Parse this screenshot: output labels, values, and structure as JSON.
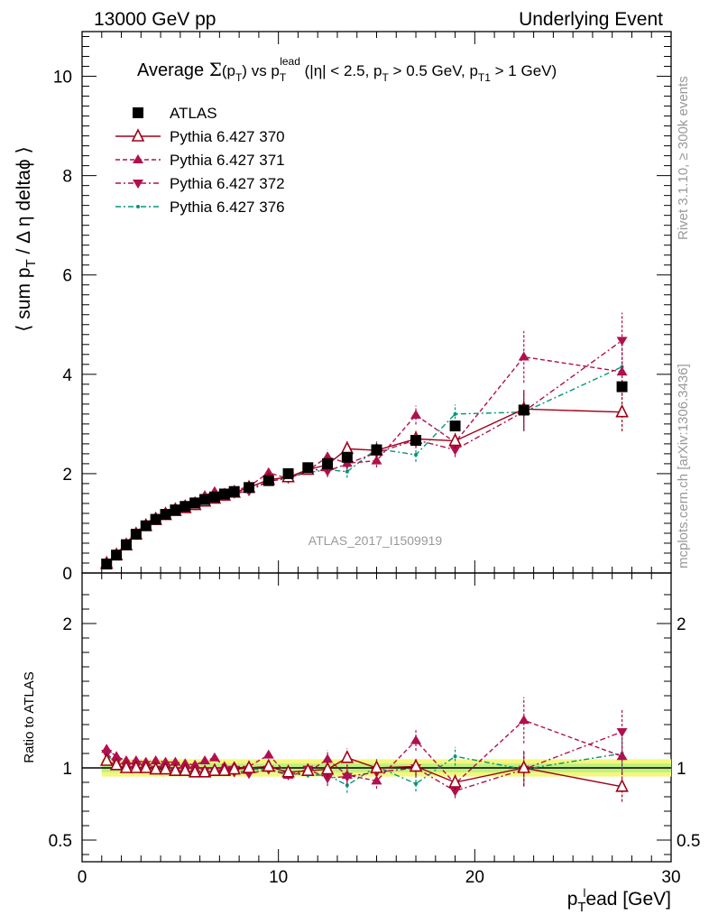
{
  "header": {
    "left": "13000 GeV pp",
    "right": "Underlying Event"
  },
  "side_labels": {
    "rivet": "Rivet 3.1.10, ≥ 300k events",
    "mcplots": "mcplots.cern.ch [arXiv:1306.3436]"
  },
  "analysis_label": "ATLAS_2017_I1509919",
  "chart_data": [
    {
      "type": "line",
      "title": "Average Σ(pT) vs pT lead (|η| < 2.5, pT > 0.5 GeV, pT1 > 1 GeV)",
      "xlabel": "pT lead [GeV]",
      "ylabel": "⟨ sum pT / Δη deltaϕ ⟩",
      "xlim": [
        0,
        30
      ],
      "ylim": [
        0,
        10.9
      ],
      "x_ticks": [
        0,
        10,
        20,
        30
      ],
      "y_ticks": [
        0,
        2,
        4,
        6,
        8,
        10
      ],
      "legend_position": "top-left",
      "series": [
        {
          "name": "ATLAS",
          "marker": "square",
          "color": "#000000",
          "x": [
            1.25,
            1.75,
            2.25,
            2.75,
            3.25,
            3.75,
            4.25,
            4.75,
            5.25,
            5.75,
            6.25,
            6.75,
            7.25,
            7.75,
            8.5,
            9.5,
            10.5,
            11.5,
            12.5,
            13.5,
            15.0,
            17.0,
            19.0,
            22.5,
            27.5
          ],
          "y": [
            0.18,
            0.36,
            0.57,
            0.78,
            0.95,
            1.08,
            1.18,
            1.27,
            1.34,
            1.41,
            1.48,
            1.53,
            1.59,
            1.64,
            1.72,
            1.86,
            2.0,
            2.12,
            2.2,
            2.33,
            2.48,
            2.67,
            2.96,
            3.28,
            3.75
          ]
        },
        {
          "name": "Pythia 6.427 370",
          "marker": "open-triangle-up",
          "line": "solid",
          "color": "#a00018",
          "x": [
            1.25,
            1.75,
            2.25,
            2.75,
            3.25,
            3.75,
            4.25,
            4.75,
            5.25,
            5.75,
            6.25,
            6.75,
            7.25,
            7.75,
            8.5,
            9.5,
            10.5,
            11.5,
            12.5,
            13.5,
            15.0,
            17.0,
            19.0,
            22.5,
            27.5
          ],
          "y": [
            0.19,
            0.36,
            0.56,
            0.78,
            0.95,
            1.07,
            1.17,
            1.25,
            1.31,
            1.37,
            1.44,
            1.5,
            1.56,
            1.62,
            1.72,
            1.88,
            1.93,
            2.08,
            2.18,
            2.5,
            2.47,
            2.7,
            2.66,
            3.3,
            3.24
          ]
        },
        {
          "name": "Pythia 6.427 371",
          "marker": "triangle-up",
          "line": "dashed",
          "color": "#b0104e",
          "x": [
            1.25,
            1.75,
            2.25,
            2.75,
            3.25,
            3.75,
            4.25,
            4.75,
            5.25,
            5.75,
            6.25,
            6.75,
            7.25,
            7.75,
            8.5,
            9.5,
            10.5,
            11.5,
            12.5,
            13.5,
            15.0,
            17.0,
            19.0,
            22.5,
            27.5
          ],
          "y": [
            0.21,
            0.39,
            0.6,
            0.82,
            0.99,
            1.13,
            1.23,
            1.32,
            1.38,
            1.44,
            1.56,
            1.64,
            1.61,
            1.66,
            1.74,
            2.02,
            1.9,
            2.06,
            2.34,
            2.21,
            2.26,
            3.18,
            2.63,
            4.35,
            4.05
          ]
        },
        {
          "name": "Pythia 6.427 372",
          "marker": "triangle-down",
          "line": "dash-dot",
          "color": "#b0104e",
          "x": [
            1.25,
            1.75,
            2.25,
            2.75,
            3.25,
            3.75,
            4.25,
            4.75,
            5.25,
            5.75,
            6.25,
            6.75,
            7.25,
            7.75,
            8.5,
            9.5,
            10.5,
            11.5,
            12.5,
            13.5,
            15.0,
            17.0,
            19.0,
            22.5,
            27.5
          ],
          "y": [
            0.2,
            0.37,
            0.58,
            0.79,
            0.95,
            1.07,
            1.17,
            1.25,
            1.32,
            1.38,
            1.45,
            1.5,
            1.56,
            1.6,
            1.65,
            1.85,
            1.9,
            2.1,
            2.05,
            2.2,
            2.42,
            2.68,
            2.48,
            3.25,
            4.68
          ]
        },
        {
          "name": "Pythia 6.427 376",
          "marker": "small-dot",
          "line": "dash-dot",
          "color": "#00957a",
          "x": [
            1.25,
            1.75,
            2.25,
            2.75,
            3.25,
            3.75,
            4.25,
            4.75,
            5.25,
            5.75,
            6.25,
            6.75,
            7.25,
            7.75,
            8.5,
            9.5,
            10.5,
            11.5,
            12.5,
            13.5,
            15.0,
            17.0,
            19.0,
            22.5,
            27.5
          ],
          "y": [
            0.2,
            0.37,
            0.57,
            0.78,
            0.94,
            1.06,
            1.16,
            1.24,
            1.3,
            1.36,
            1.44,
            1.49,
            1.54,
            1.58,
            1.7,
            1.84,
            1.92,
            2.02,
            2.08,
            2.04,
            2.5,
            2.38,
            3.2,
            3.24,
            4.15
          ]
        }
      ]
    },
    {
      "type": "line",
      "title": "",
      "xlabel": "pT lead [GeV]",
      "ylabel": "Ratio to ATLAS",
      "xlim": [
        0,
        30
      ],
      "ylim": [
        0.35,
        2.35
      ],
      "y_ticks": [
        0.5,
        1,
        2
      ],
      "reference_band": {
        "y": 1.0,
        "inner_halfwidth": 0.03,
        "outer_halfwidth": 0.06,
        "inner_color": "#bff07f",
        "outer_color": "#f4f77d"
      },
      "series": [
        {
          "name": "Pythia 6.427 370",
          "x": [
            1.25,
            1.75,
            2.25,
            2.75,
            3.25,
            3.75,
            4.25,
            4.75,
            5.25,
            5.75,
            6.25,
            6.75,
            7.25,
            7.75,
            8.5,
            9.5,
            10.5,
            11.5,
            12.5,
            13.5,
            15.0,
            17.0,
            19.0,
            22.5,
            27.5
          ],
          "y": [
            1.05,
            1.02,
            1.0,
            1.0,
            1.0,
            0.99,
            0.99,
            0.98,
            0.98,
            0.97,
            0.97,
            0.98,
            0.98,
            0.99,
            1.0,
            1.01,
            0.97,
            0.98,
            0.99,
            1.07,
            1.0,
            1.01,
            0.9,
            1.0,
            0.87
          ]
        },
        {
          "name": "Pythia 6.427 371",
          "x": [
            1.25,
            1.75,
            2.25,
            2.75,
            3.25,
            3.75,
            4.25,
            4.75,
            5.25,
            5.75,
            6.25,
            6.75,
            7.25,
            7.75,
            8.5,
            9.5,
            10.5,
            11.5,
            12.5,
            13.5,
            15.0,
            17.0,
            19.0,
            22.5,
            27.5
          ],
          "y": [
            1.13,
            1.08,
            1.05,
            1.05,
            1.04,
            1.05,
            1.04,
            1.04,
            1.03,
            1.02,
            1.05,
            1.07,
            1.01,
            1.01,
            1.01,
            1.09,
            0.95,
            0.97,
            1.06,
            0.95,
            0.91,
            1.19,
            0.89,
            1.33,
            1.08
          ]
        },
        {
          "name": "Pythia 6.427 372",
          "x": [
            1.25,
            1.75,
            2.25,
            2.75,
            3.25,
            3.75,
            4.25,
            4.75,
            5.25,
            5.75,
            6.25,
            6.75,
            7.25,
            7.75,
            8.5,
            9.5,
            10.5,
            11.5,
            12.5,
            13.5,
            15.0,
            17.0,
            19.0,
            22.5,
            27.5
          ],
          "y": [
            1.1,
            1.04,
            1.01,
            1.01,
            1.0,
            0.99,
            0.99,
            0.98,
            0.98,
            0.98,
            0.98,
            0.98,
            0.98,
            0.97,
            0.96,
            0.99,
            0.95,
            0.99,
            0.93,
            0.94,
            0.97,
            1.0,
            0.84,
            0.99,
            1.25
          ]
        },
        {
          "name": "Pythia 6.427 376",
          "x": [
            1.25,
            1.75,
            2.25,
            2.75,
            3.25,
            3.75,
            4.25,
            4.75,
            5.25,
            5.75,
            6.25,
            6.75,
            7.25,
            7.75,
            8.5,
            9.5,
            10.5,
            11.5,
            12.5,
            13.5,
            15.0,
            17.0,
            19.0,
            22.5,
            27.5
          ],
          "y": [
            1.09,
            1.03,
            1.0,
            1.0,
            0.99,
            0.98,
            0.98,
            0.98,
            0.97,
            0.97,
            0.97,
            0.97,
            0.97,
            0.96,
            0.99,
            0.99,
            0.96,
            0.95,
            0.95,
            0.88,
            1.01,
            0.89,
            1.08,
            0.99,
            1.1
          ]
        }
      ]
    }
  ]
}
